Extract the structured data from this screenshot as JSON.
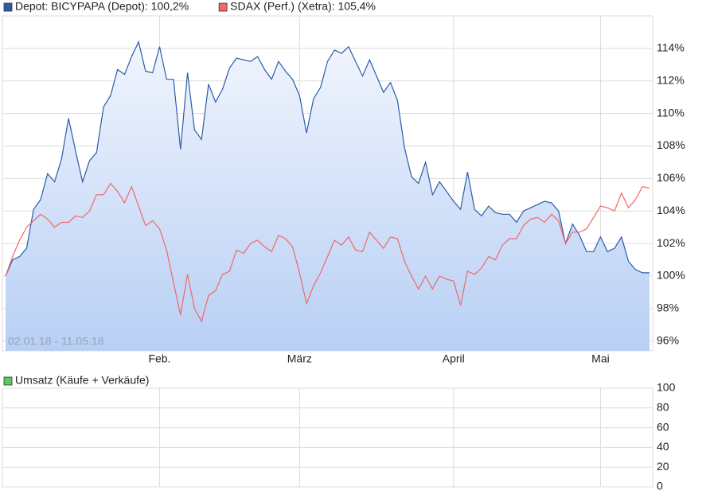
{
  "chart_data": [
    {
      "type": "line",
      "date_range": "02.01.18 - 11.05.18",
      "categories": [
        null,
        null,
        null,
        null,
        null,
        null,
        null,
        null,
        null,
        null,
        null,
        null,
        null,
        null,
        null,
        null,
        null,
        null,
        null,
        null,
        null,
        null,
        "Feb.",
        null,
        null,
        null,
        null,
        null,
        null,
        null,
        null,
        null,
        null,
        null,
        null,
        null,
        null,
        null,
        null,
        null,
        null,
        null,
        "März",
        null,
        null,
        null,
        null,
        null,
        null,
        null,
        null,
        null,
        null,
        null,
        null,
        null,
        null,
        null,
        null,
        null,
        null,
        null,
        null,
        null,
        "April",
        null,
        null,
        null,
        null,
        null,
        null,
        null,
        null,
        null,
        null,
        null,
        null,
        null,
        null,
        null,
        null,
        null,
        null,
        null,
        null,
        "Mai",
        null,
        null,
        null,
        null,
        null,
        null,
        null
      ],
      "series": [
        {
          "name": "Depot: BICYPAPA (Depot): 100,2%",
          "color": "#2a5caa",
          "area": true,
          "values": [
            100,
            101.0,
            101.2,
            101.7,
            104.1,
            104.7,
            106.3,
            105.8,
            107.2,
            109.7,
            107.7,
            105.8,
            107.1,
            107.6,
            110.4,
            111.1,
            112.7,
            112.4,
            113.5,
            114.4,
            112.6,
            112.5,
            114.1,
            112.1,
            112.1,
            107.8,
            112.5,
            109.0,
            108.4,
            111.8,
            110.7,
            111.5,
            112.8,
            113.4,
            113.3,
            113.2,
            113.5,
            112.7,
            112.1,
            113.2,
            112.6,
            112.1,
            111.1,
            108.8,
            110.9,
            111.6,
            113.2,
            113.9,
            113.7,
            114.1,
            113.2,
            112.3,
            113.3,
            112.3,
            111.3,
            111.9,
            110.8,
            107.9,
            106.1,
            105.7,
            107.0,
            105.0,
            105.8,
            105.2,
            104.6,
            104.1,
            106.4,
            104.1,
            103.7,
            104.3,
            103.9,
            103.8,
            103.8,
            103.3,
            104.0,
            104.2,
            104.4,
            104.6,
            104.5,
            104.0,
            102.0,
            103.2,
            102.5,
            101.5,
            101.5,
            102.4,
            101.5,
            101.7,
            102.4,
            100.9,
            100.4,
            100.2,
            100.2
          ]
        },
        {
          "name": "SDAX (Perf.) (Xetra): 105,4%",
          "color": "#f06868",
          "area": false,
          "values": [
            100,
            101.2,
            102.2,
            103.0,
            103.4,
            103.8,
            103.5,
            103.0,
            103.3,
            103.3,
            103.7,
            103.6,
            104.0,
            105.0,
            105.0,
            105.7,
            105.2,
            104.5,
            105.5,
            104.3,
            103.1,
            103.4,
            102.9,
            101.6,
            99.6,
            97.6,
            100.1,
            98.0,
            97.2,
            98.8,
            99.1,
            100.1,
            100.3,
            101.6,
            101.4,
            102.0,
            102.2,
            101.8,
            101.5,
            102.5,
            102.3,
            101.8,
            100.2,
            98.3,
            99.4,
            100.2,
            101.2,
            102.2,
            101.9,
            102.4,
            101.6,
            101.5,
            102.7,
            102.2,
            101.7,
            102.4,
            102.3,
            100.9,
            100.0,
            99.2,
            100.0,
            99.2,
            100.0,
            99.8,
            99.7,
            98.2,
            100.3,
            100.1,
            100.5,
            101.2,
            101.0,
            101.9,
            102.3,
            102.3,
            103.1,
            103.5,
            103.6,
            103.3,
            103.8,
            103.4,
            102.0,
            102.7,
            102.7,
            102.9,
            103.6,
            104.3,
            104.2,
            104.0,
            105.1,
            104.2,
            104.7,
            105.5,
            105.4
          ]
        }
      ],
      "ylim": [
        95.4,
        116
      ],
      "yticks": [
        {
          "value": 96,
          "label": "96%"
        },
        {
          "value": 98,
          "label": "98%"
        },
        {
          "value": 100,
          "label": "100%"
        },
        {
          "value": 102,
          "label": "102%"
        },
        {
          "value": 104,
          "label": "104%"
        },
        {
          "value": 106,
          "label": "106%"
        },
        {
          "value": 108,
          "label": "108%"
        },
        {
          "value": 110,
          "label": "110%"
        },
        {
          "value": 112,
          "label": "112%"
        },
        {
          "value": 114,
          "label": "114%"
        }
      ],
      "grid": true
    },
    {
      "type": "bar",
      "series": [
        {
          "name": "Umsatz (Käufe + Verkäufe)",
          "color": "#5cc85c",
          "values": []
        }
      ],
      "ylim": [
        0,
        100
      ],
      "yticks": [
        0,
        20,
        40,
        60,
        80,
        100
      ],
      "grid": true
    }
  ]
}
